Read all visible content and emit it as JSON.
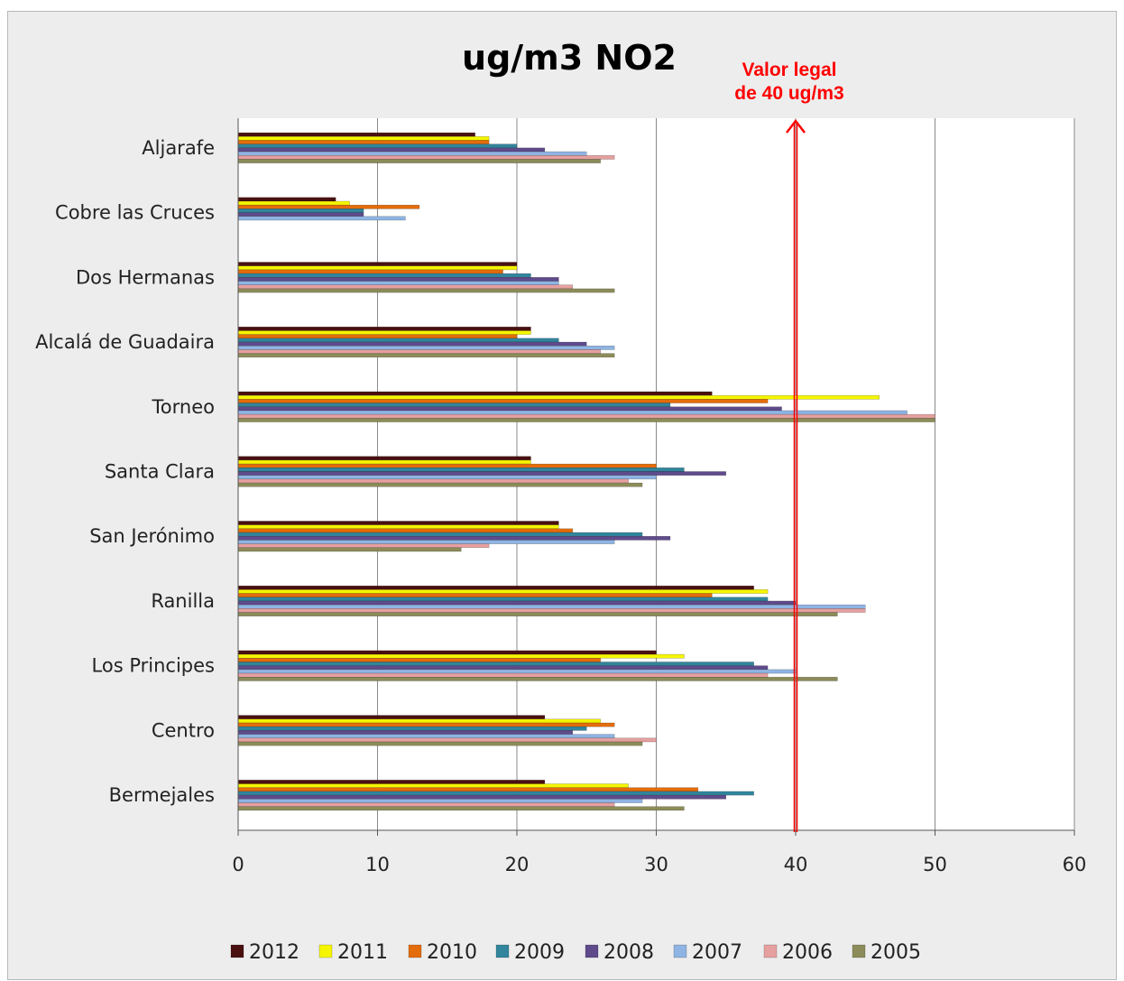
{
  "chart_data": {
    "type": "bar",
    "orientation": "horizontal",
    "title": "ug/m3 NO2",
    "xlabel": "",
    "ylabel": "",
    "xlim": [
      0,
      60
    ],
    "xticks": [
      "0",
      "10",
      "20",
      "30",
      "40",
      "50",
      "60"
    ],
    "grid": "vertical",
    "legend_position": "bottom",
    "categories": [
      "Aljarafe",
      "Cobre las Cruces",
      "Dos Hermanas",
      "Alcalá de Guadaira",
      "Torneo",
      "Santa Clara",
      "San Jerónimo",
      "Ranilla",
      "Los Principes",
      "Centro",
      "Bermejales"
    ],
    "series": [
      {
        "name": "2012",
        "color": "#4a1010",
        "values": [
          17,
          7,
          20,
          21,
          34,
          21,
          23,
          37,
          30,
          22,
          22
        ]
      },
      {
        "name": "2011",
        "color": "#f5f500",
        "values": [
          18,
          8,
          20,
          21,
          46,
          21,
          23,
          38,
          32,
          26,
          28
        ]
      },
      {
        "name": "2010",
        "color": "#e46c0a",
        "values": [
          18,
          13,
          19,
          20,
          38,
          30,
          24,
          34,
          26,
          27,
          33
        ]
      },
      {
        "name": "2009",
        "color": "#31859c",
        "values": [
          20,
          9,
          21,
          23,
          31,
          32,
          29,
          38,
          37,
          25,
          37
        ]
      },
      {
        "name": "2008",
        "color": "#5f4b8b",
        "values": [
          22,
          9,
          23,
          25,
          39,
          35,
          31,
          40,
          38,
          24,
          35
        ]
      },
      {
        "name": "2007",
        "color": "#8eb4e3",
        "values": [
          25,
          12,
          23,
          27,
          48,
          30,
          27,
          45,
          40,
          27,
          29
        ]
      },
      {
        "name": "2006",
        "color": "#e6a0a0",
        "values": [
          27,
          null,
          24,
          26,
          50,
          28,
          18,
          45,
          38,
          30,
          27
        ]
      },
      {
        "name": "2005",
        "color": "#8c8c5a",
        "values": [
          26,
          null,
          27,
          27,
          50,
          29,
          16,
          43,
          43,
          29,
          32
        ]
      }
    ],
    "annotation": {
      "lines": [
        "Valor legal",
        "de 40 ug/m3"
      ],
      "value": 40,
      "color": "#ff0000"
    }
  }
}
